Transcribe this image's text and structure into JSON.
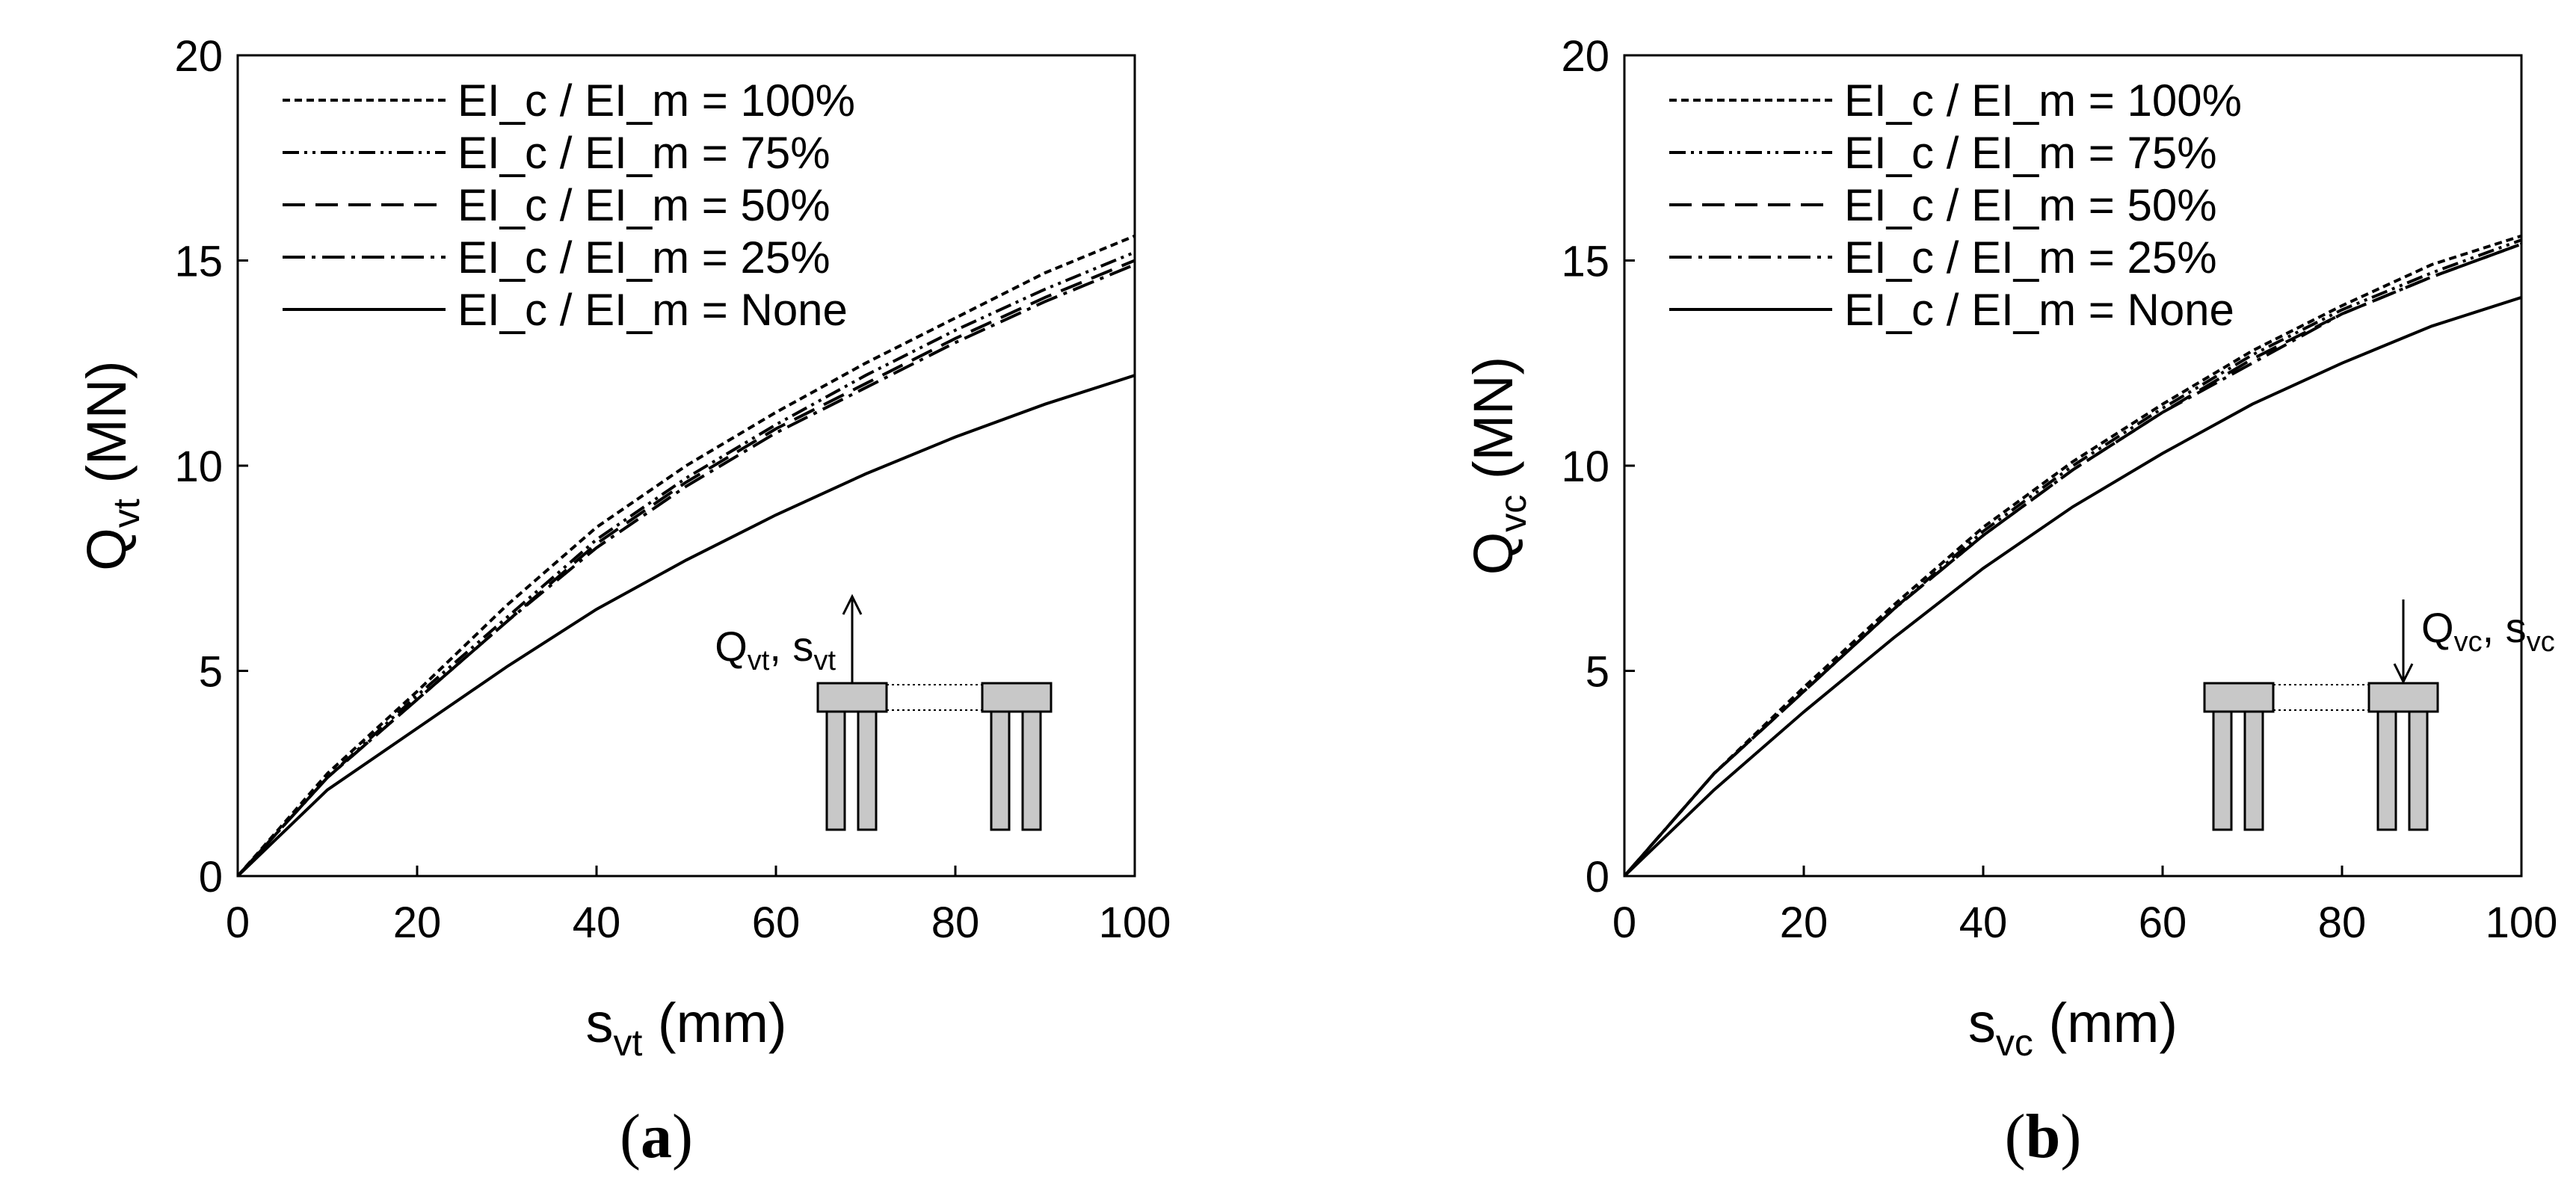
{
  "chart_data": [
    {
      "type": "line",
      "panel_label": "a",
      "xlabel": {
        "main": "s",
        "sub": "vt",
        "unit": " (mm)"
      },
      "ylabel": {
        "main": "Q",
        "sub": "vt",
        "unit": " (MN)"
      },
      "xlim": [
        0,
        100
      ],
      "ylim": [
        0,
        20
      ],
      "xticks": [
        "0",
        "20",
        "40",
        "60",
        "80",
        "100"
      ],
      "yticks": [
        "0",
        "5",
        "10",
        "15",
        "20"
      ],
      "grid": false,
      "legend_position": "top-left",
      "x": [
        0,
        10,
        20,
        30,
        40,
        50,
        60,
        70,
        80,
        90,
        100
      ],
      "series": [
        {
          "name": "EI_c / EI_m = 100%",
          "dash": "short-dash",
          "values": [
            0,
            2.5,
            4.5,
            6.6,
            8.5,
            10.0,
            11.3,
            12.5,
            13.6,
            14.7,
            15.6
          ]
        },
        {
          "name": "EI_c / EI_m = 75%",
          "dash": "dash-dot-dot",
          "values": [
            0,
            2.4,
            4.4,
            6.3,
            8.2,
            9.7,
            11.0,
            12.2,
            13.3,
            14.3,
            15.2
          ]
        },
        {
          "name": "EI_c / EI_m = 50%",
          "dash": "long-dash",
          "values": [
            0,
            2.4,
            4.3,
            6.2,
            8.1,
            9.6,
            10.9,
            12.0,
            13.1,
            14.1,
            15.0
          ]
        },
        {
          "name": "EI_c / EI_m = 25%",
          "dash": "dash-dot",
          "values": [
            0,
            2.4,
            4.3,
            6.2,
            8.0,
            9.5,
            10.8,
            11.9,
            13.0,
            14.0,
            14.9
          ]
        },
        {
          "name": "EI_c / EI_m = None",
          "dash": "solid",
          "values": [
            0,
            2.1,
            3.6,
            5.1,
            6.5,
            7.7,
            8.8,
            9.8,
            10.7,
            11.5,
            12.2
          ]
        }
      ],
      "inset": {
        "label_main": "Q",
        "label_sub": "vt",
        "label_sep": ", ",
        "label_main2": "s",
        "label_sub2": "vt",
        "arrow": "up",
        "loaded_cap": "left"
      }
    },
    {
      "type": "line",
      "panel_label": "b",
      "xlabel": {
        "main": "s",
        "sub": "vc",
        "unit": " (mm)"
      },
      "ylabel": {
        "main": "Q",
        "sub": "vc",
        "unit": " (MN)"
      },
      "xlim": [
        0,
        100
      ],
      "ylim": [
        0,
        20
      ],
      "xticks": [
        "0",
        "20",
        "40",
        "60",
        "80",
        "100"
      ],
      "yticks": [
        "0",
        "5",
        "10",
        "15",
        "20"
      ],
      "grid": false,
      "legend_position": "top-left",
      "x": [
        0,
        10,
        20,
        30,
        40,
        50,
        60,
        70,
        80,
        90,
        100
      ],
      "series": [
        {
          "name": "EI_c / EI_m = 100%",
          "dash": "short-dash",
          "values": [
            0,
            2.5,
            4.6,
            6.6,
            8.5,
            10.1,
            11.5,
            12.8,
            13.9,
            14.9,
            15.6
          ]
        },
        {
          "name": "EI_c / EI_m = 75%",
          "dash": "dash-dot-dot",
          "values": [
            0,
            2.5,
            4.5,
            6.5,
            8.4,
            10.0,
            11.4,
            12.7,
            13.8,
            14.7,
            15.5
          ]
        },
        {
          "name": "EI_c / EI_m = 50%",
          "dash": "long-dash",
          "values": [
            0,
            2.5,
            4.5,
            6.5,
            8.3,
            9.9,
            11.3,
            12.6,
            13.7,
            14.6,
            15.4
          ]
        },
        {
          "name": "EI_c / EI_m = 25%",
          "dash": "dash-dot",
          "values": [
            0,
            2.5,
            4.5,
            6.5,
            8.3,
            9.9,
            11.3,
            12.5,
            13.7,
            14.6,
            15.4
          ]
        },
        {
          "name": "EI_c / EI_m = None",
          "dash": "solid",
          "values": [
            0,
            2.1,
            4.0,
            5.8,
            7.5,
            9.0,
            10.3,
            11.5,
            12.5,
            13.4,
            14.1
          ]
        }
      ],
      "inset": {
        "label_main": "Q",
        "label_sub": "vc",
        "label_sep": ", ",
        "label_main2": "s",
        "label_sub2": "vc",
        "arrow": "down",
        "loaded_cap": "right"
      }
    }
  ],
  "colors": {
    "line": "#000000",
    "pile_fill": "#c8c8c8",
    "background": "#ffffff"
  }
}
